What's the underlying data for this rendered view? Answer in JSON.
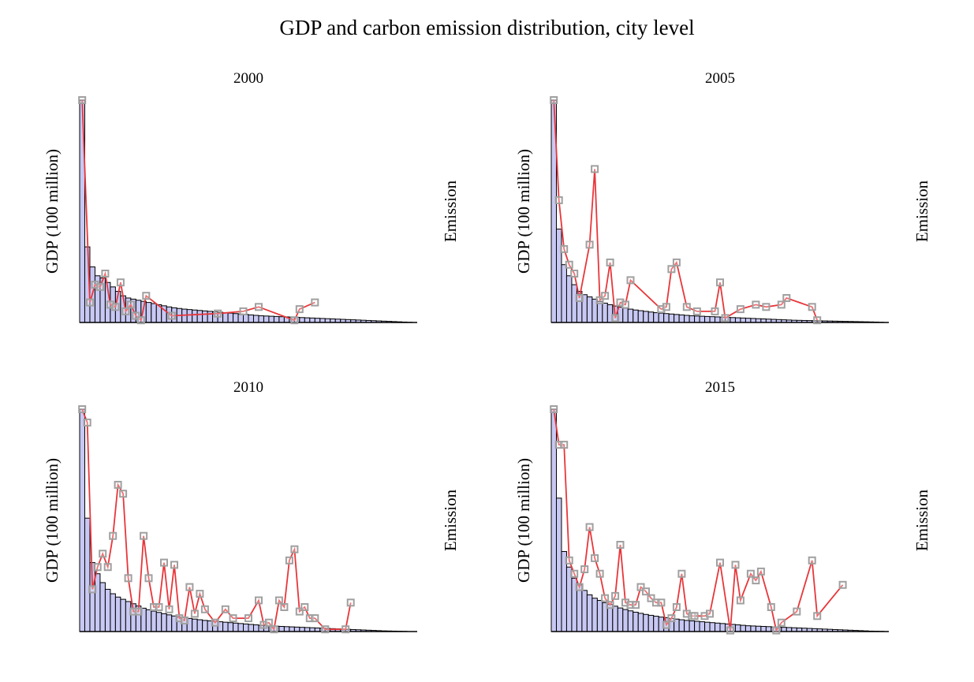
{
  "figure": {
    "title": "GDP and carbon emission distribution, city level"
  },
  "colors": {
    "bar_fill": "#c8c8f4",
    "bar_edge": "#000000",
    "line": "#e8363a",
    "marker_edge": "#a0a0a0",
    "marker_fill": "#ffffff",
    "baseline": "#000000"
  },
  "chart_data": [
    {
      "type": "bar",
      "title": "2000",
      "ylabel": "GDP (100 million)",
      "y2label": "Emission",
      "grid": false,
      "legend": "none",
      "gdp": [
        100,
        34,
        25,
        21,
        20,
        18,
        16,
        14,
        12,
        11,
        10.5,
        10,
        9.5,
        9,
        8.5,
        8,
        7.5,
        7,
        6.6,
        6.3,
        6,
        5.8,
        5.6,
        5.4,
        5.2,
        5,
        4.8,
        4.6,
        4.4,
        4.2,
        4,
        3.8,
        3.6,
        3.4,
        3.2,
        3,
        2.9,
        2.8,
        2.7,
        2.6,
        2.5,
        2.4,
        2.3,
        2.2,
        2.1,
        2,
        1.9,
        1.8,
        1.7,
        1.6,
        1.5,
        1.4,
        1.3,
        1.2,
        1.1,
        1,
        0.9,
        0.8,
        0.7,
        0.6,
        0.5,
        0.4,
        0.3,
        0.2,
        0.1,
        0
      ],
      "emission_points": [
        [
          0.5,
          100
        ],
        [
          2,
          9
        ],
        [
          3,
          17
        ],
        [
          4,
          16
        ],
        [
          5,
          22
        ],
        [
          6,
          8
        ],
        [
          7,
          7
        ],
        [
          8,
          18
        ],
        [
          9,
          5
        ],
        [
          10,
          8
        ],
        [
          11,
          3
        ],
        [
          12,
          1
        ],
        [
          13,
          12
        ],
        [
          18,
          3
        ],
        [
          27,
          4
        ],
        [
          32,
          5
        ],
        [
          35,
          7
        ],
        [
          42,
          1
        ],
        [
          43,
          6
        ],
        [
          46,
          9
        ]
      ]
    },
    {
      "type": "bar",
      "title": "2005",
      "ylabel": "GDP (100 million)",
      "y2label": "Emission",
      "grid": false,
      "legend": "none",
      "gdp": [
        100,
        42,
        26,
        21,
        17,
        14,
        12.5,
        11.5,
        10.5,
        9.5,
        8.7,
        8,
        7.4,
        6.9,
        6.4,
        6,
        5.6,
        5.3,
        5,
        4.7,
        4.4,
        4.2,
        4,
        3.8,
        3.6,
        3.4,
        3.2,
        3,
        2.9,
        2.8,
        2.7,
        2.6,
        2.5,
        2.4,
        2.3,
        2.2,
        2.1,
        2,
        1.9,
        1.8,
        1.7,
        1.6,
        1.5,
        1.4,
        1.3,
        1.2,
        1.1,
        1,
        0.95,
        0.9,
        0.85,
        0.8,
        0.75,
        0.7,
        0.65,
        0.6,
        0.55,
        0.5,
        0.45,
        0.4,
        0.35,
        0.3,
        0.25,
        0.2,
        0.1,
        0
      ],
      "emission_points": [
        [
          0.5,
          100
        ],
        [
          1.5,
          55
        ],
        [
          2.5,
          33
        ],
        [
          3.5,
          26
        ],
        [
          4.5,
          22
        ],
        [
          5.5,
          11
        ],
        [
          7.5,
          35
        ],
        [
          8.5,
          69
        ],
        [
          9.5,
          10
        ],
        [
          10.5,
          12
        ],
        [
          11.5,
          27
        ],
        [
          12.5,
          2
        ],
        [
          13.5,
          9
        ],
        [
          14.5,
          8
        ],
        [
          15.5,
          19
        ],
        [
          21.5,
          6
        ],
        [
          22.5,
          7
        ],
        [
          23.5,
          24
        ],
        [
          24.5,
          27
        ],
        [
          26.5,
          7
        ],
        [
          28.5,
          5
        ],
        [
          32,
          5
        ],
        [
          33,
          18
        ],
        [
          34,
          2
        ],
        [
          37,
          6
        ],
        [
          40,
          8
        ],
        [
          42,
          7
        ],
        [
          45,
          8
        ],
        [
          46,
          11
        ],
        [
          51,
          7
        ],
        [
          52,
          1
        ]
      ]
    },
    {
      "type": "bar",
      "title": "2010",
      "ylabel": "GDP (100 million)",
      "y2label": "Emission",
      "grid": false,
      "legend": "none",
      "gdp": [
        100,
        51,
        31,
        26,
        22,
        19,
        17,
        15.5,
        14.5,
        13.5,
        12.5,
        11.5,
        10.5,
        9.8,
        9.2,
        8.6,
        8,
        7.5,
        7,
        6.6,
        6.2,
        5.9,
        5.6,
        5.3,
        5,
        4.8,
        4.6,
        4.4,
        4.2,
        4,
        3.8,
        3.6,
        3.4,
        3.2,
        3,
        2.8,
        2.6,
        2.5,
        2.4,
        2.3,
        2.2,
        2.1,
        2,
        1.9,
        1.8,
        1.7,
        1.6,
        1.5,
        1.4,
        1.3,
        1.2,
        1.1,
        1,
        0.9,
        0.8,
        0.7,
        0.6,
        0.5,
        0.4,
        0.3,
        0.25,
        0.2,
        0.15,
        0.1,
        0.05,
        0
      ],
      "emission_points": [
        [
          0.5,
          100
        ],
        [
          1.5,
          94
        ],
        [
          2.5,
          19
        ],
        [
          3.5,
          29
        ],
        [
          4.5,
          35
        ],
        [
          5.5,
          29
        ],
        [
          6.5,
          43
        ],
        [
          7.5,
          66
        ],
        [
          8.5,
          62
        ],
        [
          9.5,
          24
        ],
        [
          10.5,
          9
        ],
        [
          11.5,
          9
        ],
        [
          12.5,
          43
        ],
        [
          13.5,
          24
        ],
        [
          14.5,
          11
        ],
        [
          15.5,
          11
        ],
        [
          16.5,
          31
        ],
        [
          17.5,
          10
        ],
        [
          18.5,
          30
        ],
        [
          19.5,
          6
        ],
        [
          20.5,
          5
        ],
        [
          21.5,
          20
        ],
        [
          22.5,
          8
        ],
        [
          23.5,
          17
        ],
        [
          24.5,
          10
        ],
        [
          26.5,
          4
        ],
        [
          28.5,
          10
        ],
        [
          30,
          6
        ],
        [
          33,
          6
        ],
        [
          35,
          14
        ],
        [
          36,
          3
        ],
        [
          37,
          4
        ],
        [
          38,
          1
        ],
        [
          39,
          14
        ],
        [
          40,
          11
        ],
        [
          41,
          32
        ],
        [
          42,
          37
        ],
        [
          43,
          9
        ],
        [
          44,
          11
        ],
        [
          45,
          6
        ],
        [
          46,
          6
        ],
        [
          48,
          1
        ],
        [
          52,
          1
        ],
        [
          53,
          13
        ]
      ]
    },
    {
      "type": "bar",
      "title": "2015",
      "ylabel": "GDP (100 million)",
      "y2label": "Emission",
      "grid": false,
      "legend": "none",
      "gdp": [
        100,
        60,
        36,
        29,
        24,
        21,
        18.5,
        16.5,
        15,
        14,
        13,
        12.2,
        11.4,
        10.6,
        9.9,
        9.3,
        8.7,
        8.2,
        7.7,
        7.3,
        6.9,
        6.5,
        6.2,
        5.9,
        5.6,
        5.3,
        5,
        4.8,
        4.6,
        4.4,
        4.2,
        4,
        3.8,
        3.6,
        3.4,
        3.2,
        3,
        2.8,
        2.6,
        2.5,
        2.4,
        2.3,
        2.2,
        2.1,
        2,
        1.9,
        1.8,
        1.7,
        1.6,
        1.5,
        1.4,
        1.3,
        1.2,
        1.1,
        1,
        0.9,
        0.8,
        0.7,
        0.6,
        0.5,
        0.4,
        0.3,
        0.2,
        0.15,
        0.1,
        0
      ],
      "emission_points": [
        [
          0.5,
          100
        ],
        [
          1.5,
          84
        ],
        [
          2.5,
          84
        ],
        [
          3.5,
          32
        ],
        [
          4.5,
          26
        ],
        [
          5.5,
          20
        ],
        [
          6.5,
          28
        ],
        [
          7.5,
          47
        ],
        [
          8.5,
          33
        ],
        [
          9.5,
          26
        ],
        [
          10.5,
          15
        ],
        [
          11.5,
          12
        ],
        [
          12.5,
          16
        ],
        [
          13.5,
          39
        ],
        [
          14.5,
          13
        ],
        [
          15.5,
          12
        ],
        [
          16.5,
          12
        ],
        [
          17.5,
          20
        ],
        [
          18.5,
          18
        ],
        [
          19.5,
          15
        ],
        [
          20.5,
          13
        ],
        [
          21.5,
          13
        ],
        [
          22.5,
          3
        ],
        [
          23.5,
          6
        ],
        [
          24.5,
          11
        ],
        [
          25.5,
          26
        ],
        [
          26.5,
          8
        ],
        [
          27.5,
          7
        ],
        [
          28,
          7
        ],
        [
          30,
          7
        ],
        [
          31,
          8
        ],
        [
          33,
          31
        ],
        [
          35,
          0.5
        ],
        [
          36,
          30
        ],
        [
          37,
          14
        ],
        [
          39,
          26
        ],
        [
          40,
          23
        ],
        [
          41,
          27
        ],
        [
          43,
          11
        ],
        [
          44,
          0.5
        ],
        [
          45,
          4
        ],
        [
          48,
          9
        ],
        [
          51,
          32
        ],
        [
          52,
          7
        ],
        [
          57,
          21
        ]
      ]
    }
  ]
}
